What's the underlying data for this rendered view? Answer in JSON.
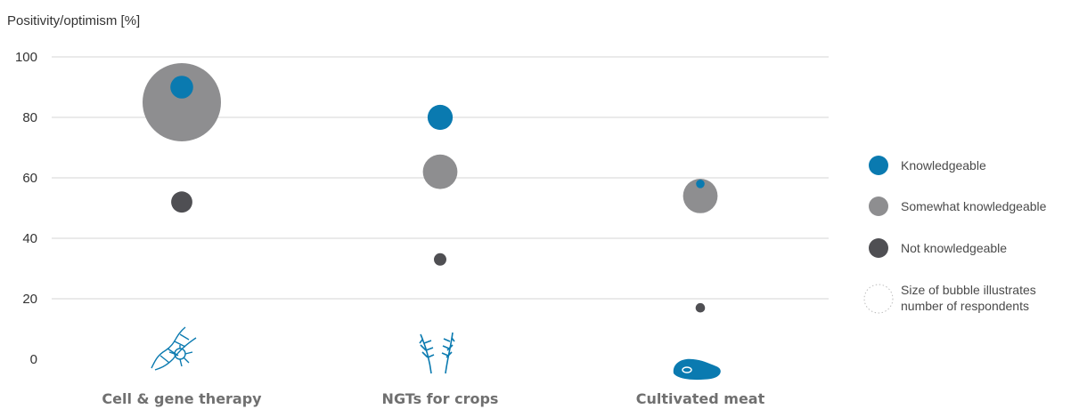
{
  "chart_data": {
    "type": "scatter",
    "ylabel": "Positivity/optimism [%]",
    "ylim": [
      0,
      100
    ],
    "yticks": [
      "0",
      "20",
      "40",
      "60",
      "80",
      "100"
    ],
    "grid": true,
    "legend_position": "right",
    "categories": [
      "Cell & gene therapy",
      "NGTs for crops",
      "Cultivated meat"
    ],
    "series": [
      {
        "name": "Somewhat knowledgeable",
        "color": "#8e8e90",
        "values": [
          85,
          62,
          54
        ],
        "relative_size": [
          1.0,
          0.44,
          0.44
        ]
      },
      {
        "name": "Knowledgeable",
        "color": "#0a7ab0",
        "values": [
          90,
          80,
          58
        ],
        "relative_size": [
          0.29,
          0.32,
          0.11
        ]
      },
      {
        "name": "Not knowledgeable",
        "color": "#4f4f53",
        "values": [
          52,
          33,
          17
        ],
        "relative_size": [
          0.27,
          0.16,
          0.12
        ]
      }
    ],
    "legend": [
      {
        "label": "Knowledgeable",
        "color": "#0a7ab0",
        "style": "filled"
      },
      {
        "label": "Somewhat knowledgeable",
        "color": "#8e8e90",
        "style": "filled"
      },
      {
        "label": "Not knowledgeable",
        "color": "#4f4f53",
        "style": "filled"
      },
      {
        "label": "Size of bubble illustrates\nnumber of respondents",
        "color": "#bdbdbd",
        "style": "dotted"
      }
    ],
    "category_icons": [
      "dna-cell-icon",
      "wheat-icon",
      "steak-icon"
    ]
  }
}
